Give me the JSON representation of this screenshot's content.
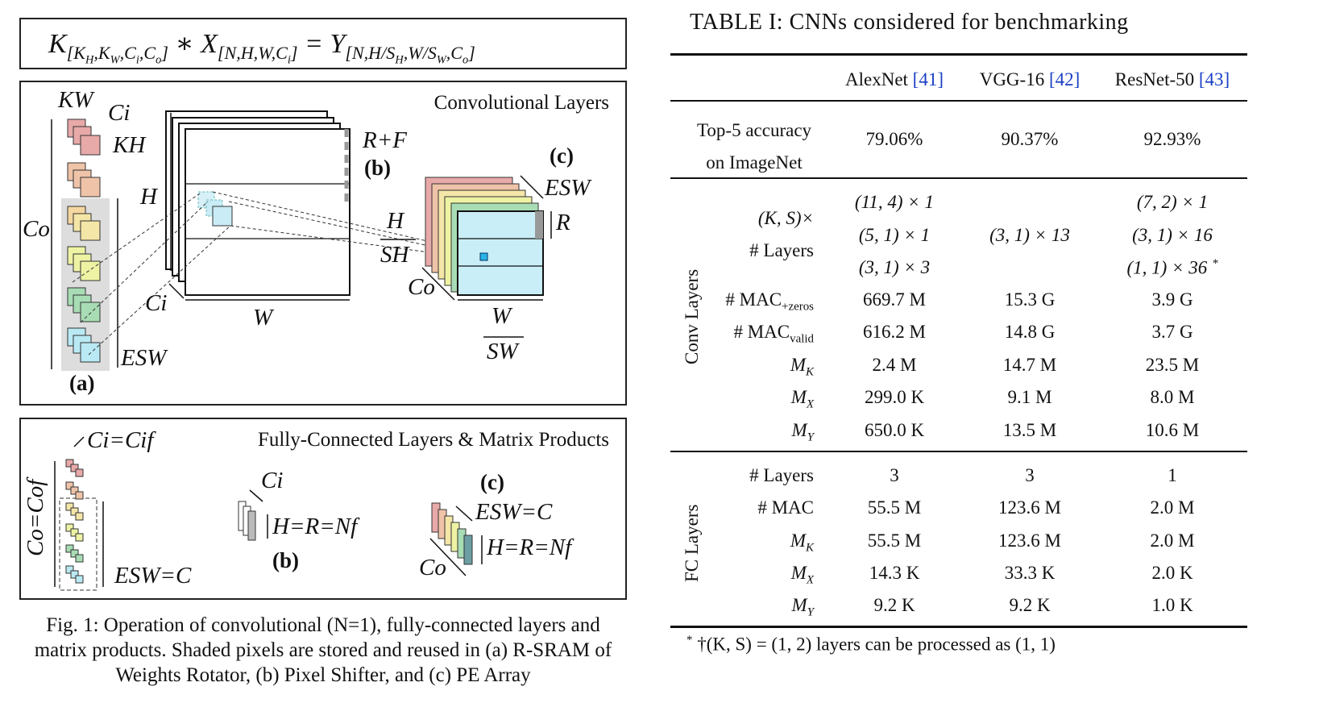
{
  "figure": {
    "equation": "K[KH,KW,Ci,Co] * X[N,H,W,Ci] = Y[N,H/SH,W/SW,Co]",
    "conv_panel": {
      "title": "Convolutional Layers",
      "labels": {
        "kw": "KW",
        "ci": "Ci",
        "kh": "KH",
        "co": "Co",
        "h": "H",
        "rf": "R+F",
        "b": "(b)",
        "c": "(c)",
        "esw": "ESW",
        "r": "R",
        "hsh_num": "H",
        "hsh_den": "SH",
        "co2": "Co",
        "ci2": "Ci",
        "w": "W",
        "wsw_num": "W",
        "wsw_den": "SW",
        "esw2": "ESW",
        "a": "(a)"
      }
    },
    "fc_panel": {
      "title": "Fully-Connected Layers & Matrix Products",
      "labels": {
        "ci_eq": "Ci=Cif",
        "co_eq": "Co=Cof",
        "esw_eq": "ESW=C",
        "ci": "Ci",
        "h_eq": "H=R=Nf",
        "b": "(b)",
        "c": "(c)",
        "esw_c": "ESW=C",
        "h_eq2": "H=R=Nf",
        "co": "Co"
      }
    },
    "caption": "Fig. 1: Operation of convolutional (N=1), fully-connected layers and matrix products. Shaded pixels are stored and reused in (a) R-SRAM of Weights Rotator, (b) Pixel Shifter, and (c) PE Array",
    "colors": {
      "red": "#e8a9a9",
      "orange": "#efc3a8",
      "yellow": "#f4e6a7",
      "lime": "#eef3a4",
      "green": "#a8dcb5",
      "cyan": "#b9eaf4",
      "gray_shade": "#dddddd"
    }
  },
  "table": {
    "title": "TABLE I: CNNs considered for benchmarking",
    "columns": [
      {
        "name": "AlexNet",
        "ref": "[41]"
      },
      {
        "name": "VGG-16",
        "ref": "[42]"
      },
      {
        "name": "ResNet-50",
        "ref": "[43]"
      }
    ],
    "accuracy": {
      "label_line1": "Top-5 accuracy",
      "label_line2": "on ImageNet",
      "values": [
        "79.06%",
        "90.37%",
        "92.93%"
      ]
    },
    "conv": {
      "group_label": "Conv Layers",
      "ks_label1": "(K, S)×",
      "ks_label2": "# Layers",
      "alexnet_ks": [
        "(11, 4) × 1",
        "(5, 1) × 1",
        "(3, 1) × 3"
      ],
      "vgg_ks": [
        "(3, 1) × 13"
      ],
      "resnet_ks": [
        "(7, 2) × 1",
        "(3, 1) × 16",
        "(1, 1) × 36"
      ],
      "resnet_mark": "*",
      "rows": [
        {
          "label": "# MAC",
          "sub": "+zeros",
          "values": [
            "669.7 M",
            "15.3 G",
            "3.9 G"
          ]
        },
        {
          "label": "# MAC",
          "sub": "valid",
          "values": [
            "616.2 M",
            "14.8 G",
            "3.7 G"
          ]
        },
        {
          "label": "M",
          "sub": "K",
          "values": [
            "2.4 M",
            "14.7 M",
            "23.5 M"
          ]
        },
        {
          "label": "M",
          "sub": "X",
          "values": [
            "299.0 K",
            "9.1 M",
            "8.0 M"
          ]
        },
        {
          "label": "M",
          "sub": "Y",
          "values": [
            "650.0 K",
            "13.5 M",
            "10.6 M"
          ]
        }
      ]
    },
    "fc": {
      "group_label": "FC Layers",
      "rows": [
        {
          "label": "# Layers",
          "sub": "",
          "values": [
            "3",
            "3",
            "1"
          ]
        },
        {
          "label": "# MAC",
          "sub": "",
          "values": [
            "55.5 M",
            "123.6 M",
            "2.0 M"
          ]
        },
        {
          "label": "M",
          "sub": "K",
          "values": [
            "55.5 M",
            "123.6 M",
            "2.0 M"
          ]
        },
        {
          "label": "M",
          "sub": "X",
          "values": [
            "14.3 K",
            "33.3 K",
            "2.0 K"
          ]
        },
        {
          "label": "M",
          "sub": "Y",
          "values": [
            "9.2 K",
            "9.2 K",
            "1.0 K"
          ]
        }
      ]
    },
    "footnote": {
      "mark": "*",
      "text": "†(K, S) = (1, 2) layers can be processed as (1, 1)"
    }
  }
}
